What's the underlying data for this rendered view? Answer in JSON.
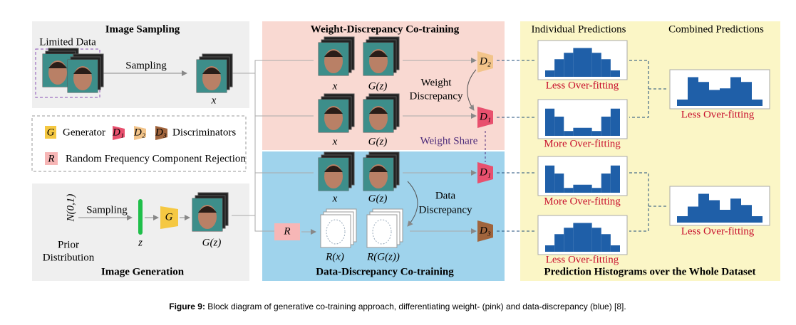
{
  "image_sampling": {
    "title": "Image Sampling",
    "limited_data": "Limited Data",
    "arrow_label": "Sampling",
    "output_label": "x"
  },
  "legend": {
    "g_symbol": "G",
    "g_text": "Generator",
    "d1": "D₁",
    "d2": "D₂",
    "d3": "D₃",
    "d_text": "Discriminators",
    "r_symbol": "R",
    "r_text": "Random Frequency Component Rejection"
  },
  "image_generation": {
    "title": "Image Generation",
    "noise": "N(0,1)",
    "arrow_label": "Sampling",
    "prior_line1": "Prior",
    "prior_line2": "Distribution",
    "z": "z",
    "g": "G",
    "output_label": "G(z)"
  },
  "weight_panel": {
    "title": "Weight-Discrepancy Co-training",
    "row1": [
      "x",
      "G(z)"
    ],
    "row2": [
      "x",
      "G(z)"
    ],
    "discrepancy_line1": "Weight",
    "discrepancy_line2": "Discrepancy",
    "d_top": "D₂",
    "d_bottom": "D₁",
    "share": "Weight Share"
  },
  "data_panel": {
    "title": "Data-Discrepancy Co-training",
    "row1": [
      "x",
      "G(z)"
    ],
    "r": "R",
    "row2": [
      "R(x)",
      "R(G(z))"
    ],
    "discrepancy_line1": "Data",
    "discrepancy_line2": "Discrepancy",
    "d_top": "D₁",
    "d_bottom": "D₃"
  },
  "predictions": {
    "individual_header": "Individual Predictions",
    "combined_header": "Combined Predictions",
    "individual_labels": [
      "Less Over-fitting",
      "More Over-fitting",
      "More Over-fitting",
      "Less Over-fitting"
    ],
    "combined_labels": [
      "Less Over-fitting",
      "Less Over-fitting"
    ],
    "footer": "Prediction Histograms over the Whole Dataset"
  },
  "caption": {
    "label": "Figure 9:",
    "text": "Block diagram of generative co-training approach, differentiating weight- (pink) and data-discrepancy (blue) [8]."
  }
}
